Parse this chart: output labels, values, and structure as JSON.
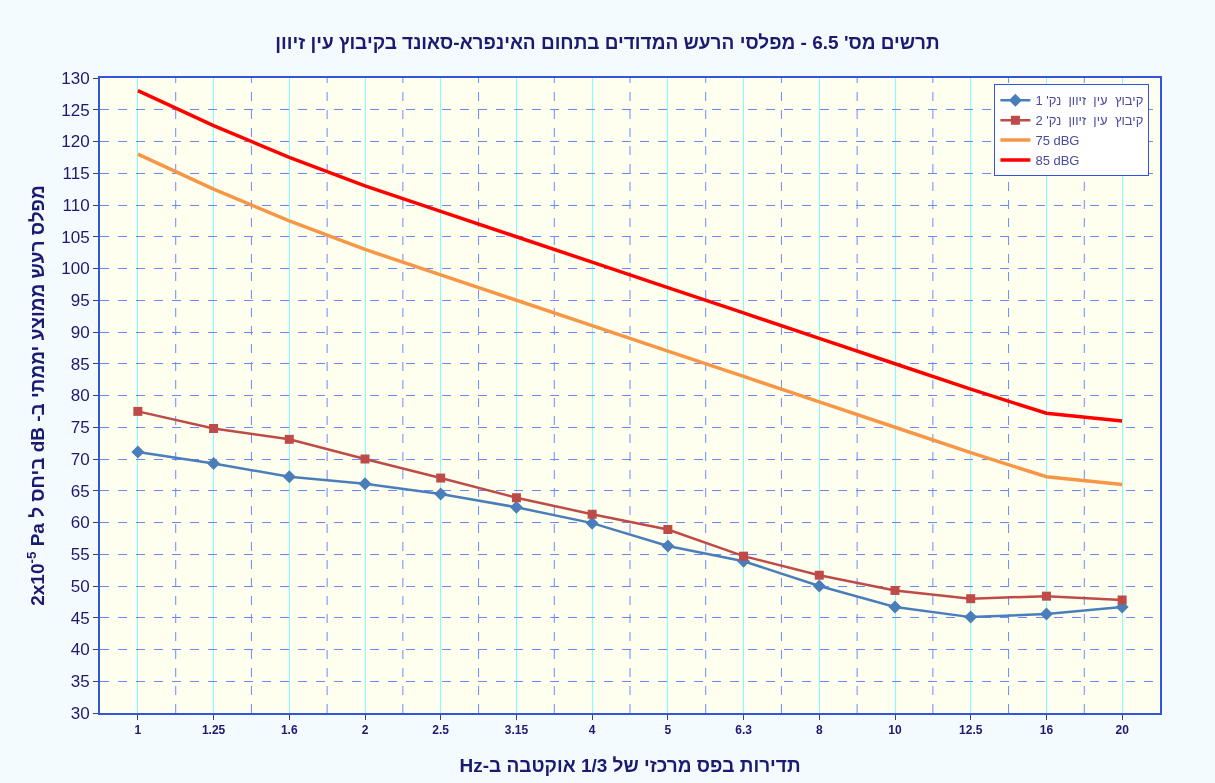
{
  "chart_data": {
    "type": "line",
    "title": "תרשים מס' 6.5 - מפלסי הרעש המדודים בתחום האינפרא-סאונד בקיבוץ עין זיוון",
    "xlabel": "תדירות בפס מרכזי של 1/3 אוקטבה ב-Hz",
    "ylabel": "מפלס רעש ממוצע יממתי ב- dB ביחס ל 2x10$^{-5}$ Pa",
    "categories": [
      "1",
      "1.25",
      "1.6",
      "2",
      "2.5",
      "3.15",
      "4",
      "5",
      "6.3",
      "8",
      "10",
      "12.5",
      "16",
      "20"
    ],
    "series": [
      {
        "name": "קיבוץ  עין  זיוון  נק' 1",
        "color": "#4a7ebb",
        "marker": "diamond",
        "values": [
          71.1,
          69.3,
          67.2,
          66.1,
          64.5,
          62.4,
          59.9,
          56.3,
          53.9,
          50.0,
          46.7,
          45.1,
          45.6,
          46.7
        ]
      },
      {
        "name": "קיבוץ  עין  זיוון  נק' 2",
        "color": "#be4b48",
        "marker": "square",
        "values": [
          77.5,
          74.8,
          73.1,
          70.0,
          67.0,
          63.9,
          61.3,
          58.9,
          54.7,
          51.7,
          49.3,
          48.0,
          48.4,
          47.8
        ]
      },
      {
        "name": "75 dBG",
        "color": "#f79646",
        "marker": "none",
        "values": [
          118,
          112.5,
          107.5,
          103,
          99,
          95,
          91,
          87,
          83,
          79,
          75,
          71,
          67.2,
          66
        ]
      },
      {
        "name": "85 dBG",
        "color": "#ff0000",
        "marker": "none",
        "values": [
          128,
          122.5,
          117.5,
          113,
          109,
          105,
          101,
          97,
          93,
          89,
          85,
          81,
          77.2,
          76
        ]
      }
    ],
    "ylim": [
      30,
      130
    ],
    "yticks": [
      30,
      35,
      40,
      45,
      50,
      55,
      60,
      65,
      70,
      75,
      80,
      85,
      90,
      95,
      100,
      105,
      110,
      115,
      120,
      125,
      130
    ],
    "grid": true,
    "legend": "top right",
    "line_style": "solid"
  }
}
